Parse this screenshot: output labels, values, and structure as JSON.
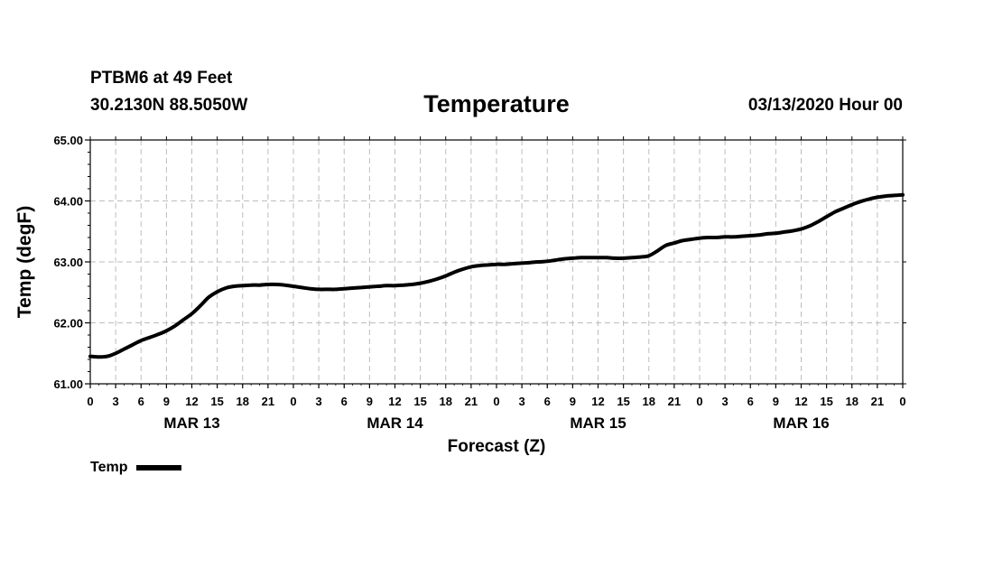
{
  "header": {
    "station": "PTBM6 at 49 Feet",
    "coordinates": "30.2130N 88.5050W",
    "title": "Temperature",
    "datetime": "03/13/2020 Hour 00"
  },
  "chart_data": {
    "type": "line",
    "title": "Temperature",
    "xlabel": "Forecast (Z)",
    "ylabel": "Temp (degF)",
    "ylim": [
      61.0,
      65.0
    ],
    "xlim": [
      0,
      96
    ],
    "grid": true,
    "y_ticks": [
      "61.00",
      "62.00",
      "63.00",
      "64.00",
      "65.00"
    ],
    "x_tick_labels": [
      "0",
      "3",
      "6",
      "9",
      "12",
      "15",
      "18",
      "21",
      "0",
      "3",
      "6",
      "9",
      "12",
      "15",
      "18",
      "21",
      "0",
      "3",
      "6",
      "9",
      "12",
      "15",
      "18",
      "21",
      "0",
      "3",
      "6",
      "9",
      "12",
      "15",
      "18",
      "21",
      "0"
    ],
    "day_labels": [
      {
        "label": "MAR 13",
        "hour": 12
      },
      {
        "label": "MAR 14",
        "hour": 36
      },
      {
        "label": "MAR 15",
        "hour": 60
      },
      {
        "label": "MAR 16",
        "hour": 84
      }
    ],
    "series": [
      {
        "name": "Temp",
        "color": "#000000",
        "x": [
          0,
          1,
          2,
          3,
          4,
          5,
          6,
          7,
          8,
          9,
          10,
          11,
          12,
          13,
          14,
          15,
          16,
          17,
          18,
          19,
          20,
          21,
          22,
          23,
          24,
          25,
          26,
          27,
          28,
          29,
          30,
          31,
          32,
          33,
          34,
          35,
          36,
          37,
          38,
          39,
          40,
          41,
          42,
          43,
          44,
          45,
          46,
          47,
          48,
          49,
          50,
          51,
          52,
          53,
          54,
          55,
          56,
          57,
          58,
          59,
          60,
          61,
          62,
          63,
          64,
          65,
          66,
          67,
          68,
          69,
          70,
          71,
          72,
          73,
          74,
          75,
          76,
          77,
          78,
          79,
          80,
          81,
          82,
          83,
          84,
          85,
          86,
          87,
          88,
          89,
          90,
          91,
          92,
          93,
          94,
          95,
          96
        ],
        "values": [
          61.45,
          61.44,
          61.45,
          61.5,
          61.57,
          61.64,
          61.71,
          61.76,
          61.81,
          61.87,
          61.95,
          62.05,
          62.15,
          62.28,
          62.42,
          62.51,
          62.57,
          62.6,
          62.61,
          62.62,
          62.62,
          62.63,
          62.63,
          62.62,
          62.6,
          62.58,
          62.56,
          62.55,
          62.55,
          62.55,
          62.56,
          62.57,
          62.58,
          62.59,
          62.6,
          62.61,
          62.61,
          62.62,
          62.63,
          62.65,
          62.68,
          62.72,
          62.77,
          62.83,
          62.88,
          62.92,
          62.94,
          62.95,
          62.96,
          62.96,
          62.97,
          62.98,
          62.99,
          63.0,
          63.01,
          63.03,
          63.05,
          63.06,
          63.07,
          63.07,
          63.07,
          63.07,
          63.06,
          63.06,
          63.07,
          63.08,
          63.1,
          63.18,
          63.27,
          63.31,
          63.35,
          63.37,
          63.39,
          63.4,
          63.4,
          63.41,
          63.41,
          63.42,
          63.43,
          63.44,
          63.46,
          63.47,
          63.49,
          63.51,
          63.54,
          63.59,
          63.66,
          63.74,
          63.82,
          63.88,
          63.94,
          63.99,
          64.03,
          64.06,
          64.08,
          64.09,
          64.1
        ]
      }
    ]
  },
  "legend": {
    "label": "Temp"
  }
}
